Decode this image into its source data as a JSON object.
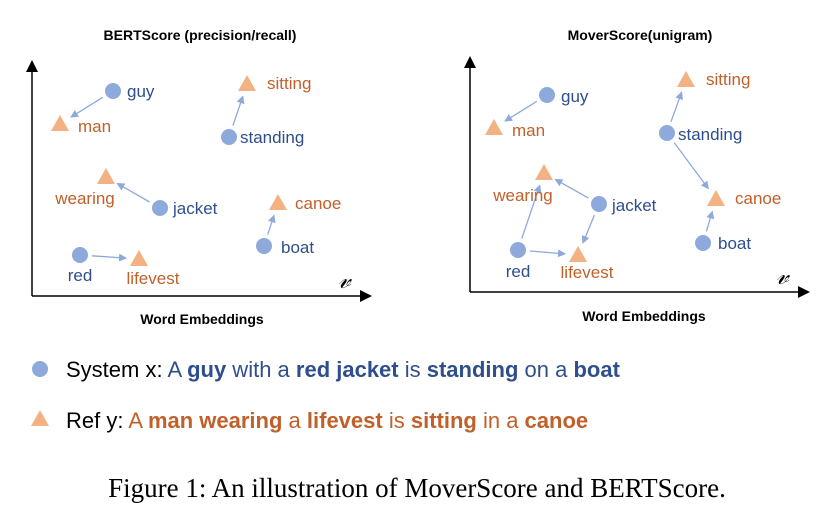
{
  "colors": {
    "system_point": "#8EA9DB",
    "ref_point": "#F4B183",
    "system_text": "#2F4E8C",
    "ref_text": "#C0602A",
    "arrow": "#8EA9DB"
  },
  "panels": [
    {
      "title": "BERTScore (precision/recall)",
      "xlabel": "Word Embeddings",
      "space_symbol": "𝓋",
      "system_words": [
        "guy",
        "standing",
        "jacket",
        "red",
        "boat"
      ],
      "ref_words": [
        "man",
        "sitting",
        "wearing",
        "canoe",
        "lifevest"
      ],
      "arrows": [
        [
          "guy",
          "man"
        ],
        [
          "standing",
          "sitting"
        ],
        [
          "jacket",
          "wearing"
        ],
        [
          "red",
          "lifevest"
        ],
        [
          "boat",
          "canoe"
        ]
      ]
    },
    {
      "title": "MoverScore(unigram)",
      "xlabel": "Word Embeddings",
      "space_symbol": "𝓋",
      "system_words": [
        "guy",
        "standing",
        "jacket",
        "red",
        "boat"
      ],
      "ref_words": [
        "man",
        "sitting",
        "wearing",
        "canoe",
        "lifevest"
      ],
      "arrows": [
        [
          "guy",
          "man"
        ],
        [
          "standing",
          "sitting"
        ],
        [
          "standing",
          "canoe"
        ],
        [
          "jacket",
          "wearing"
        ],
        [
          "jacket",
          "lifevest"
        ],
        [
          "red",
          "wearing"
        ],
        [
          "red",
          "lifevest"
        ],
        [
          "boat",
          "canoe"
        ]
      ]
    }
  ],
  "legend": {
    "system": {
      "label": "System x: ",
      "segments": [
        {
          "text": "A ",
          "bold": false
        },
        {
          "text": "guy",
          "bold": true
        },
        {
          "text": " with a ",
          "bold": false
        },
        {
          "text": "red jacket",
          "bold": true
        },
        {
          "text": " is ",
          "bold": false
        },
        {
          "text": "standing",
          "bold": true
        },
        {
          "text": " on a ",
          "bold": false
        },
        {
          "text": "boat",
          "bold": true
        }
      ]
    },
    "reference": {
      "label": "Ref y: ",
      "segments": [
        {
          "text": "A ",
          "bold": false
        },
        {
          "text": "man wearing",
          "bold": true
        },
        {
          "text": " a ",
          "bold": false
        },
        {
          "text": "lifevest",
          "bold": true
        },
        {
          "text": " is ",
          "bold": false
        },
        {
          "text": "sitting",
          "bold": true
        },
        {
          "text": " in a ",
          "bold": false
        },
        {
          "text": "canoe",
          "bold": true
        }
      ]
    }
  },
  "caption": "Figure 1:  An illustration of MoverScore and BERTScore."
}
